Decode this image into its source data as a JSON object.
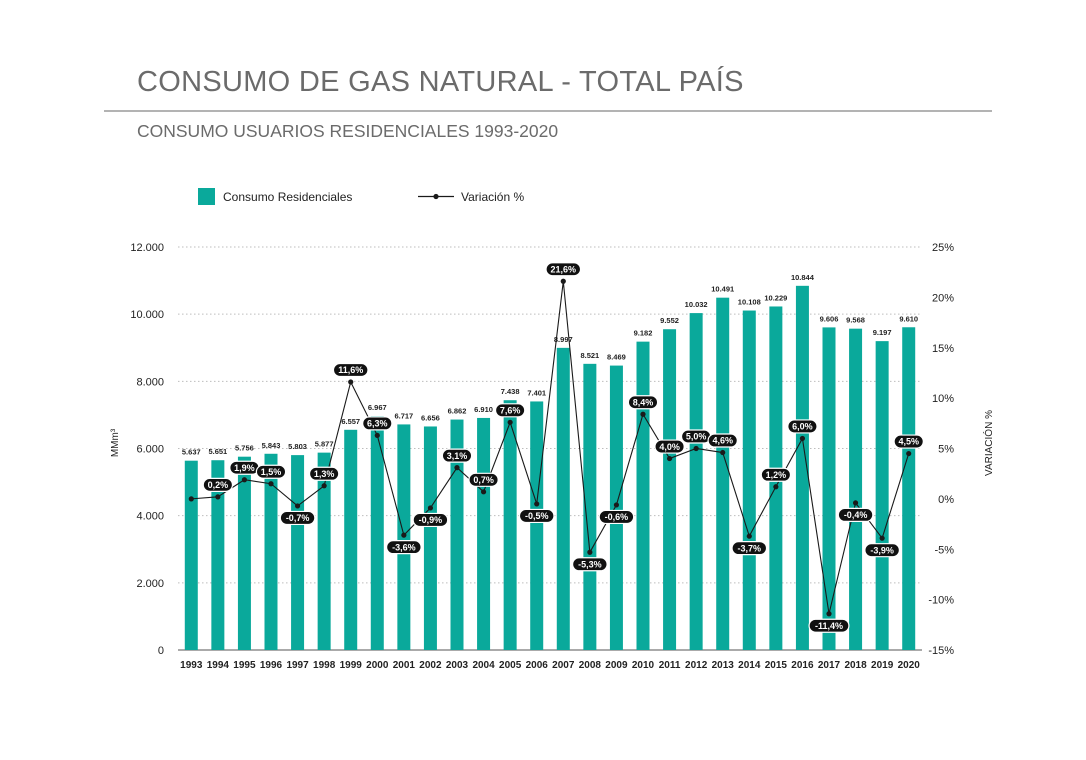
{
  "header": {
    "title": "CONSUMO DE GAS NATURAL - TOTAL PAÍS",
    "subtitle": "CONSUMO USUARIOS RESIDENCIALES 1993-2020"
  },
  "chart_data": {
    "type": "bar",
    "categories": [
      "1993",
      "1994",
      "1995",
      "1996",
      "1997",
      "1998",
      "1999",
      "2000",
      "2001",
      "2002",
      "2003",
      "2004",
      "2005",
      "2006",
      "2007",
      "2008",
      "2009",
      "2010",
      "2011",
      "2012",
      "2013",
      "2014",
      "2015",
      "2016",
      "2017",
      "2018",
      "2019",
      "2020"
    ],
    "series": [
      {
        "name": "Consumo Residenciales",
        "type": "bar",
        "axis": "left",
        "color": "#0aa99b",
        "values": [
          5637,
          5651,
          5756,
          5843,
          5803,
          5877,
          6557,
          6967,
          6717,
          6656,
          6862,
          6910,
          7438,
          7401,
          8997,
          8521,
          8469,
          9182,
          9552,
          10032,
          10491,
          10108,
          10229,
          10844,
          9606,
          9568,
          9197,
          9610
        ],
        "labels": [
          "5.637",
          "5.651",
          "5.756",
          "5.843",
          "5.803",
          "5.877",
          "6.557",
          "6.967",
          "6.717",
          "6.656",
          "6.862",
          "6.910",
          "7.438",
          "7.401",
          "8.997",
          "8.521",
          "8.469",
          "9.182",
          "9.552",
          "10.032",
          "10.491",
          "10.108",
          "10.229",
          "10.844",
          "9.606",
          "9.568",
          "9.197",
          "9.610"
        ]
      },
      {
        "name": "Variación %",
        "type": "line",
        "axis": "right",
        "color": "#1a1a1a",
        "values": [
          0,
          0.2,
          1.9,
          1.5,
          -0.7,
          1.3,
          11.6,
          6.3,
          -3.6,
          -0.9,
          3.1,
          0.7,
          7.6,
          -0.5,
          21.6,
          -5.3,
          -0.6,
          8.4,
          4.0,
          5.0,
          4.6,
          -3.7,
          1.2,
          6.0,
          -11.4,
          -0.4,
          -3.9,
          4.5
        ],
        "labels": [
          null,
          "0,2%",
          "1,9%",
          "1,5%",
          "-0,7%",
          "1,3%",
          "11,6%",
          "6,3%",
          "-3,6%",
          "-0,9%",
          "3,1%",
          "0,7%",
          "7,6%",
          "-0,5%",
          "21,6%",
          "-5,3%",
          "-0,6%",
          "8,4%",
          "4,0%",
          "5,0%",
          "4,6%",
          "-3,7%",
          "1,2%",
          "6,0%",
          "-11,4%",
          "-0,4%",
          "-3,9%",
          "4,5%"
        ]
      }
    ],
    "ylabel": "MMm³",
    "y2label": "VARIACIÓN %",
    "ylim": [
      0,
      12000
    ],
    "y2lim": [
      -15,
      25
    ],
    "yticks": [
      "0",
      "2.000",
      "4.000",
      "6.000",
      "8.000",
      "10.000",
      "12.000"
    ],
    "y2ticks": [
      "-15%",
      "-10%",
      "-5%",
      "0%",
      "5%",
      "10%",
      "15%",
      "20%",
      "25%"
    ],
    "grid": "dotted horizontal",
    "legend": "top-left"
  }
}
